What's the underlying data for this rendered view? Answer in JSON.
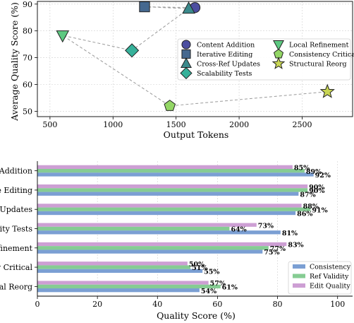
{
  "chart_data": [
    {
      "type": "scatter",
      "title": "",
      "xlabel": "Output Tokens",
      "ylabel": "Average Quality Score (%)",
      "xlim": [
        400,
        2900
      ],
      "ylim": [
        48,
        91
      ],
      "xticks": [
        500,
        1000,
        1500,
        2000,
        2500
      ],
      "yticks": [
        50,
        60,
        70,
        80,
        90
      ],
      "grid": true,
      "legend_position": "center-right",
      "legend_columns": 2,
      "connector_line": "dashed gray line through points ordered by legend order",
      "points": [
        {
          "name": "Content Addition",
          "x": 1650,
          "y": 88.7,
          "marker": "circle",
          "color": "#4c4ea0"
        },
        {
          "name": "Iterative Editing",
          "x": 1250,
          "y": 89.0,
          "marker": "square",
          "color": "#45688f"
        },
        {
          "name": "Cross-Ref Updates",
          "x": 1600,
          "y": 88.3,
          "marker": "triangle-up",
          "color": "#3b8a8c"
        },
        {
          "name": "Scalability Tests",
          "x": 1150,
          "y": 72.7,
          "marker": "diamond",
          "color": "#36b19a"
        },
        {
          "name": "Local Refinement",
          "x": 600,
          "y": 78.3,
          "marker": "triangle-down",
          "color": "#5dc981"
        },
        {
          "name": "Consistency Critical",
          "x": 1450,
          "y": 52.0,
          "marker": "pentagon",
          "color": "#93d665"
        },
        {
          "name": "Structural Reorg",
          "x": 2700,
          "y": 57.3,
          "marker": "star",
          "color": "#c9d654"
        }
      ]
    },
    {
      "type": "bar",
      "orientation": "horizontal",
      "xlabel": "Quality Score (%)",
      "ylabel": "",
      "xlim": [
        0,
        105
      ],
      "xticks": [
        0,
        20,
        40,
        60,
        80,
        100
      ],
      "grid": true,
      "legend_position": "bottom-right",
      "categories": [
        "Addition",
        "e Editing",
        "Updates",
        "ity Tests",
        "finement",
        "y Critical",
        "al Reorg"
      ],
      "series": [
        {
          "name": "Consistency",
          "color": "#7b9fd3",
          "values": [
            92,
            87,
            86,
            81,
            75,
            55,
            54
          ]
        },
        {
          "name": "Ref Validity",
          "color": "#86cc93",
          "values": [
            89,
            90,
            91,
            64,
            77,
            51,
            61
          ]
        },
        {
          "name": "Edit Quality",
          "color": "#cd9fd4",
          "values": [
            85,
            90,
            88,
            73,
            83,
            50,
            57
          ]
        }
      ],
      "value_suffix": "%"
    }
  ]
}
